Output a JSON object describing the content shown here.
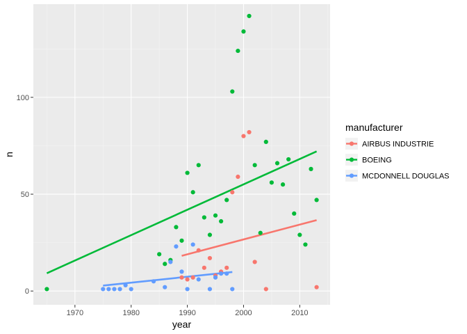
{
  "chart_data": {
    "type": "scatter",
    "title": "",
    "xlabel": "year",
    "ylabel": "n",
    "xlim": [
      1962.6,
      2015.4
    ],
    "ylim": [
      -7.1,
      148.1
    ],
    "x_ticks": [
      1970,
      1980,
      1990,
      2000,
      2010
    ],
    "y_ticks": [
      0,
      50,
      100
    ],
    "grid": true,
    "legend": {
      "title": "manufacturer",
      "position": "right"
    },
    "series": [
      {
        "name": "AIRBUS INDUSTRIE",
        "color": "#F8766D",
        "points": [
          [
            1989,
            7
          ],
          [
            1990,
            6
          ],
          [
            1991,
            7
          ],
          [
            1992,
            21
          ],
          [
            1993,
            12
          ],
          [
            1994,
            17
          ],
          [
            1995,
            8
          ],
          [
            1996,
            10
          ],
          [
            1997,
            12
          ],
          [
            1998,
            51
          ],
          [
            1999,
            59
          ],
          [
            2000,
            80
          ],
          [
            2001,
            82
          ],
          [
            2002,
            15
          ],
          [
            2004,
            1
          ],
          [
            2013,
            2
          ]
        ],
        "trend": [
          [
            1989,
            18.2
          ],
          [
            2013,
            36.6
          ]
        ]
      },
      {
        "name": "BOEING",
        "color": "#00BA38",
        "points": [
          [
            1965,
            1
          ],
          [
            1985,
            19
          ],
          [
            1986,
            14
          ],
          [
            1987,
            16
          ],
          [
            1988,
            33
          ],
          [
            1989,
            26
          ],
          [
            1990,
            61
          ],
          [
            1991,
            51
          ],
          [
            1992,
            65
          ],
          [
            1993,
            38
          ],
          [
            1994,
            29
          ],
          [
            1995,
            39
          ],
          [
            1996,
            36
          ],
          [
            1997,
            47
          ],
          [
            1998,
            103
          ],
          [
            1999,
            124
          ],
          [
            2000,
            134
          ],
          [
            2001,
            142
          ],
          [
            2002,
            65
          ],
          [
            2003,
            30
          ],
          [
            2004,
            77
          ],
          [
            2005,
            56
          ],
          [
            2006,
            66
          ],
          [
            2007,
            55
          ],
          [
            2008,
            68
          ],
          [
            2009,
            40
          ],
          [
            2010,
            29
          ],
          [
            2011,
            24
          ],
          [
            2012,
            63
          ],
          [
            2013,
            47
          ]
        ],
        "trend": [
          [
            1965,
            9.2
          ],
          [
            2013,
            72.1
          ]
        ]
      },
      {
        "name": "MCDONNELL DOUGLAS",
        "color": "#619CFF",
        "points": [
          [
            1975,
            1
          ],
          [
            1976,
            1
          ],
          [
            1977,
            1
          ],
          [
            1978,
            1
          ],
          [
            1979,
            3
          ],
          [
            1980,
            1
          ],
          [
            1984,
            5
          ],
          [
            1986,
            2
          ],
          [
            1987,
            15
          ],
          [
            1988,
            23
          ],
          [
            1989,
            10
          ],
          [
            1990,
            1
          ],
          [
            1991,
            24
          ],
          [
            1992,
            6
          ],
          [
            1994,
            1
          ],
          [
            1995,
            7
          ],
          [
            1996,
            9
          ],
          [
            1997,
            9
          ],
          [
            1998,
            1
          ]
        ],
        "trend": [
          [
            1975,
            2.8
          ],
          [
            1998,
            9.8
          ]
        ]
      }
    ]
  }
}
